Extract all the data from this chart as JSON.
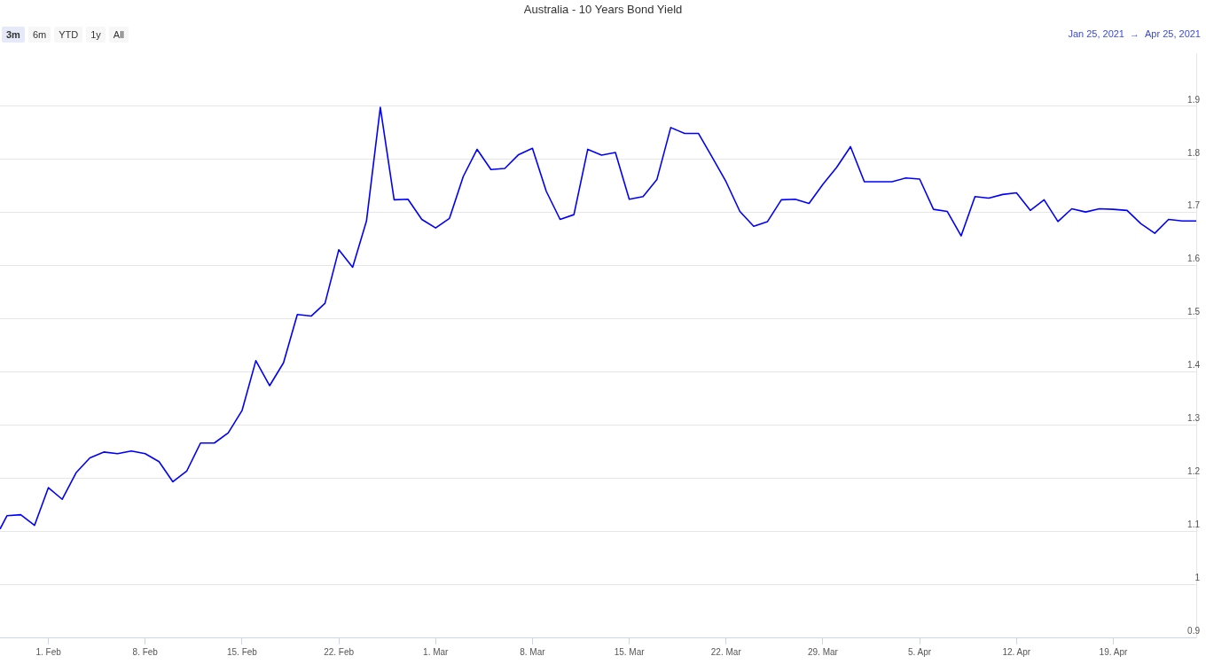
{
  "chart_data": {
    "type": "line",
    "title": "Australia - 10 Years Bond Yield",
    "annotations": [
      "3m",
      "6m",
      "YTD",
      "1y",
      "All",
      "Jan 25, 2021",
      "→",
      "Apr 25, 2021"
    ],
    "x": [
      "2021-01-28T12:00",
      "2021-01-29",
      "2021-01-30",
      "2021-01-31",
      "2021-02-01",
      "2021-02-02",
      "2021-02-03",
      "2021-02-04",
      "2021-02-05",
      "2021-02-06",
      "2021-02-07",
      "2021-02-08",
      "2021-02-09",
      "2021-02-10",
      "2021-02-11",
      "2021-02-12",
      "2021-02-13",
      "2021-02-14",
      "2021-02-15",
      "2021-02-16",
      "2021-02-17",
      "2021-02-18",
      "2021-02-19",
      "2021-02-20",
      "2021-02-21",
      "2021-02-22",
      "2021-02-23",
      "2021-02-24",
      "2021-02-25",
      "2021-02-26",
      "2021-02-27",
      "2021-02-28",
      "2021-03-01",
      "2021-03-02",
      "2021-03-03",
      "2021-03-04",
      "2021-03-05",
      "2021-03-06",
      "2021-03-07",
      "2021-03-08",
      "2021-03-09",
      "2021-03-10",
      "2021-03-11",
      "2021-03-12",
      "2021-03-13",
      "2021-03-14",
      "2021-03-15",
      "2021-03-16",
      "2021-03-17",
      "2021-03-18",
      "2021-03-19",
      "2021-03-20",
      "2021-03-21",
      "2021-03-22",
      "2021-03-23",
      "2021-03-24",
      "2021-03-25",
      "2021-03-26",
      "2021-03-27",
      "2021-03-28",
      "2021-03-29",
      "2021-03-30",
      "2021-03-31",
      "2021-04-01",
      "2021-04-02",
      "2021-04-03",
      "2021-04-04",
      "2021-04-05",
      "2021-04-06",
      "2021-04-07",
      "2021-04-08",
      "2021-04-09",
      "2021-04-10",
      "2021-04-11",
      "2021-04-12",
      "2021-04-13",
      "2021-04-14",
      "2021-04-15",
      "2021-04-16",
      "2021-04-17",
      "2021-04-18",
      "2021-04-19",
      "2021-04-20",
      "2021-04-21",
      "2021-04-22",
      "2021-04-23",
      "2021-04-24",
      "2021-04-25"
    ],
    "series": [
      {
        "color": "#0000ff",
        "values": [
          1.104,
          1.129,
          1.131,
          1.111,
          1.182,
          1.16,
          1.21,
          1.238,
          1.249,
          1.246,
          1.251,
          1.246,
          1.231,
          1.193,
          1.213,
          1.266,
          1.266,
          1.285,
          1.327,
          1.421,
          1.374,
          1.417,
          1.508,
          1.505,
          1.529,
          1.63,
          1.597,
          1.684,
          1.898,
          1.724,
          1.725,
          1.687,
          1.671,
          1.689,
          1.768,
          1.819,
          1.781,
          1.783,
          1.809,
          1.821,
          1.74,
          1.687,
          1.696,
          1.819,
          1.808,
          1.813,
          1.725,
          1.73,
          1.762,
          1.86,
          1.849,
          1.849,
          1.804,
          1.758,
          1.702,
          1.674,
          1.683,
          1.724,
          1.725,
          1.717,
          1.753,
          1.785,
          1.824,
          1.758,
          1.758,
          1.758,
          1.765,
          1.763,
          1.706,
          1.702,
          1.656,
          1.73,
          1.727,
          1.734,
          1.737,
          1.704,
          1.724,
          1.683,
          1.707,
          1.701,
          1.707,
          1.706,
          1.704,
          1.679,
          1.661,
          1.687,
          1.684,
          1.684
        ]
      }
    ],
    "xlim": [
      "2021-01-28T12:00",
      "2021-04-25"
    ],
    "xticks": [
      {
        "value": "2021-02-01",
        "label": "1. Feb"
      },
      {
        "value": "2021-02-08",
        "label": "8. Feb"
      },
      {
        "value": "2021-02-15",
        "label": "15. Feb"
      },
      {
        "value": "2021-02-22",
        "label": "22. Feb"
      },
      {
        "value": "2021-03-01",
        "label": "1. Mar"
      },
      {
        "value": "2021-03-08",
        "label": "8. Mar"
      },
      {
        "value": "2021-03-15",
        "label": "15. Mar"
      },
      {
        "value": "2021-03-22",
        "label": "22. Mar"
      },
      {
        "value": "2021-03-29",
        "label": "29. Mar"
      },
      {
        "value": "2021-04-05",
        "label": "5. Apr"
      },
      {
        "value": "2021-04-12",
        "label": "12. Apr"
      },
      {
        "value": "2021-04-19",
        "label": "19. Apr"
      }
    ],
    "ylim": [
      0.9,
      2.0
    ],
    "yticks": [
      0.9,
      1,
      1.1,
      1.2,
      1.3,
      1.4,
      1.5,
      1.6,
      1.7,
      1.8,
      1.9
    ],
    "grid": "y",
    "legend": false,
    "marker": "none",
    "line_style": "solid"
  }
}
